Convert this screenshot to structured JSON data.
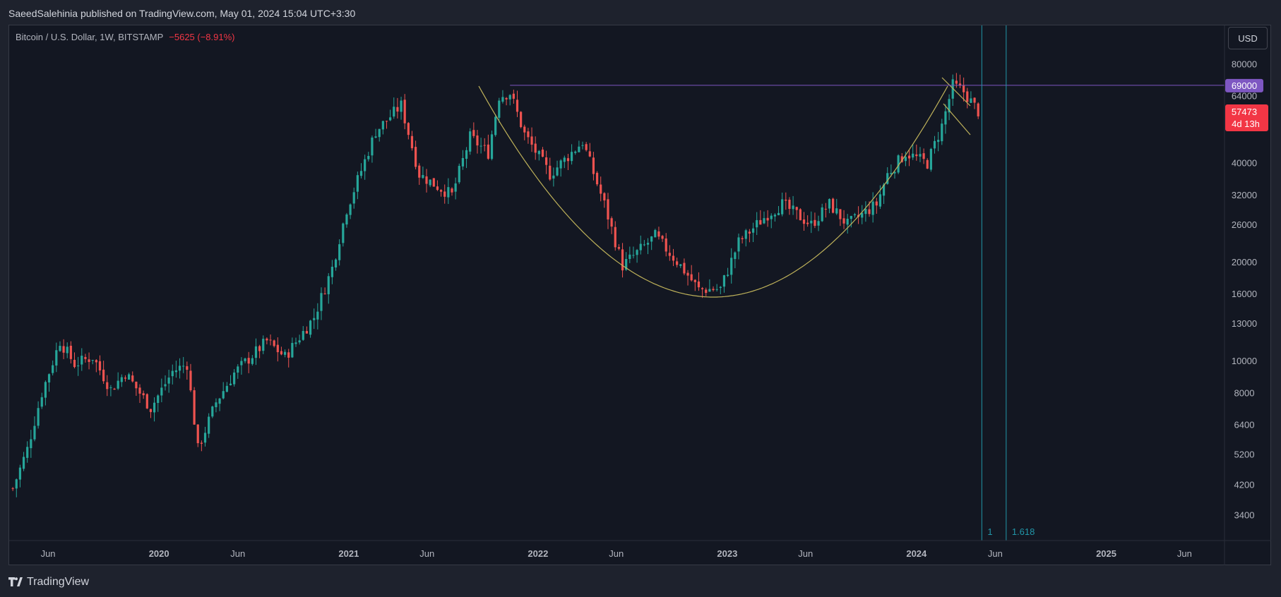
{
  "header": {
    "published": "SaeedSalehinia published on TradingView.com, May 01, 2024 15:04 UTC+3:30"
  },
  "legend": {
    "symbol": "Bitcoin / U.S. Dollar, 1W, BITSTAMP",
    "change": "−5625 (−8.91%)"
  },
  "toolbar": {
    "currency": "USD"
  },
  "footer": {
    "brand": "TradingView"
  },
  "colors": {
    "up": "#26a69a",
    "down": "#ef5350",
    "curve": "#bfb25a",
    "hline": "#7e57c2",
    "vline": "#2196a8",
    "background": "#131722"
  },
  "chart_data": {
    "type": "candlestick",
    "title": "Bitcoin / U.S. Dollar, 1W, BITSTAMP",
    "scale": "log",
    "ylim": [
      2900,
      100000
    ],
    "y_ticks": [
      80000,
      64000,
      40000,
      32000,
      26000,
      20000,
      16000,
      13000,
      10000,
      8000,
      6400,
      5200,
      4200,
      3400
    ],
    "x_ticks": [
      {
        "date": "2019-06-01",
        "label": "Jun",
        "bold": false
      },
      {
        "date": "2020-01-01",
        "label": "2020",
        "bold": true
      },
      {
        "date": "2020-06-01",
        "label": "Jun",
        "bold": false
      },
      {
        "date": "2021-01-01",
        "label": "2021",
        "bold": true
      },
      {
        "date": "2021-06-01",
        "label": "Jun",
        "bold": false
      },
      {
        "date": "2022-01-01",
        "label": "2022",
        "bold": true
      },
      {
        "date": "2022-06-01",
        "label": "Jun",
        "bold": false
      },
      {
        "date": "2023-01-01",
        "label": "2023",
        "bold": true
      },
      {
        "date": "2023-06-01",
        "label": "Jun",
        "bold": false
      },
      {
        "date": "2024-01-01",
        "label": "2024",
        "bold": true
      },
      {
        "date": "2024-06-01",
        "label": "Jun",
        "bold": false
      },
      {
        "date": "2025-01-01",
        "label": "2025",
        "bold": true
      },
      {
        "date": "2025-06-01",
        "label": "Jun",
        "bold": false
      }
    ],
    "x_range": [
      "2019-03-18",
      "2025-11-15"
    ],
    "closes": [
      {
        "date": "2019-03-25",
        "value": 4100
      },
      {
        "date": "2019-04-22",
        "value": 5400
      },
      {
        "date": "2019-05-20",
        "value": 8000
      },
      {
        "date": "2019-06-24",
        "value": 11500
      },
      {
        "date": "2019-07-22",
        "value": 9800
      },
      {
        "date": "2019-08-26",
        "value": 10300
      },
      {
        "date": "2019-09-30",
        "value": 8200
      },
      {
        "date": "2019-10-28",
        "value": 9200
      },
      {
        "date": "2019-12-16",
        "value": 7200
      },
      {
        "date": "2020-01-27",
        "value": 9300
      },
      {
        "date": "2020-02-24",
        "value": 9800
      },
      {
        "date": "2020-03-16",
        "value": 5400
      },
      {
        "date": "2020-04-20",
        "value": 7500
      },
      {
        "date": "2020-05-25",
        "value": 9200
      },
      {
        "date": "2020-07-27",
        "value": 11500
      },
      {
        "date": "2020-08-31",
        "value": 10300
      },
      {
        "date": "2020-10-26",
        "value": 13600
      },
      {
        "date": "2020-11-30",
        "value": 19200
      },
      {
        "date": "2020-12-28",
        "value": 29000
      },
      {
        "date": "2021-01-25",
        "value": 38000
      },
      {
        "date": "2021-02-22",
        "value": 50000
      },
      {
        "date": "2021-04-12",
        "value": 60000
      },
      {
        "date": "2021-05-17",
        "value": 37000
      },
      {
        "date": "2021-06-21",
        "value": 34000
      },
      {
        "date": "2021-07-19",
        "value": 32000
      },
      {
        "date": "2021-08-23",
        "value": 48000
      },
      {
        "date": "2021-09-27",
        "value": 43000
      },
      {
        "date": "2021-10-18",
        "value": 64000
      },
      {
        "date": "2021-11-08",
        "value": 65500
      },
      {
        "date": "2021-12-06",
        "value": 49000
      },
      {
        "date": "2022-01-24",
        "value": 37000
      },
      {
        "date": "2022-03-28",
        "value": 46500
      },
      {
        "date": "2022-05-09",
        "value": 30000
      },
      {
        "date": "2022-06-13",
        "value": 19500
      },
      {
        "date": "2022-08-15",
        "value": 24000
      },
      {
        "date": "2022-10-03",
        "value": 19500
      },
      {
        "date": "2022-11-07",
        "value": 16500
      },
      {
        "date": "2022-12-19",
        "value": 16600
      },
      {
        "date": "2023-01-23",
        "value": 23000
      },
      {
        "date": "2023-03-20",
        "value": 28000
      },
      {
        "date": "2023-04-17",
        "value": 30000
      },
      {
        "date": "2023-06-12",
        "value": 26000
      },
      {
        "date": "2023-07-17",
        "value": 30000
      },
      {
        "date": "2023-08-21",
        "value": 26000
      },
      {
        "date": "2023-10-16",
        "value": 30000
      },
      {
        "date": "2023-11-06",
        "value": 37000
      },
      {
        "date": "2023-12-11",
        "value": 43000
      },
      {
        "date": "2024-01-22",
        "value": 40000
      },
      {
        "date": "2024-02-19",
        "value": 52000
      },
      {
        "date": "2024-03-11",
        "value": 69000
      },
      {
        "date": "2024-04-01",
        "value": 66000
      },
      {
        "date": "2024-04-29",
        "value": 57473
      }
    ],
    "annotations": {
      "horizontal_level": {
        "value": 69000,
        "label": "69000",
        "start_date": "2021-11-08"
      },
      "last_price": {
        "value": 57473,
        "label": "57473",
        "countdown": "4d 13h"
      },
      "fib_time_lines": [
        {
          "date": "2024-05-06",
          "label": "1"
        },
        {
          "date": "2024-06-22",
          "label": "1.618"
        }
      ]
    }
  }
}
